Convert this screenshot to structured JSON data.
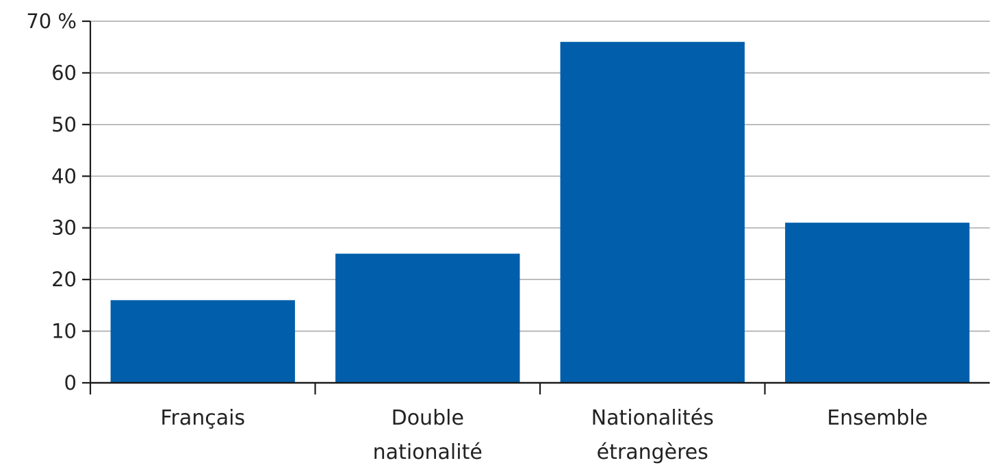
{
  "chart_data": {
    "type": "bar",
    "categories": [
      [
        "Français"
      ],
      [
        "Double",
        "nationalité"
      ],
      [
        "Nationalités",
        "étrangères"
      ],
      [
        "Ensemble"
      ]
    ],
    "values": [
      16,
      25,
      66,
      31
    ],
    "ylim": [
      0,
      70
    ],
    "y_ticks": [
      0,
      10,
      20,
      30,
      40,
      50,
      60,
      70
    ],
    "y_tick_labels": [
      "0",
      "10",
      "20",
      "30",
      "40",
      "50",
      "60",
      "70 %"
    ],
    "grid": true,
    "bar_color": "#005EAA",
    "grid_color": "#b3b3b3",
    "axis_color": "#1a1a1a"
  }
}
